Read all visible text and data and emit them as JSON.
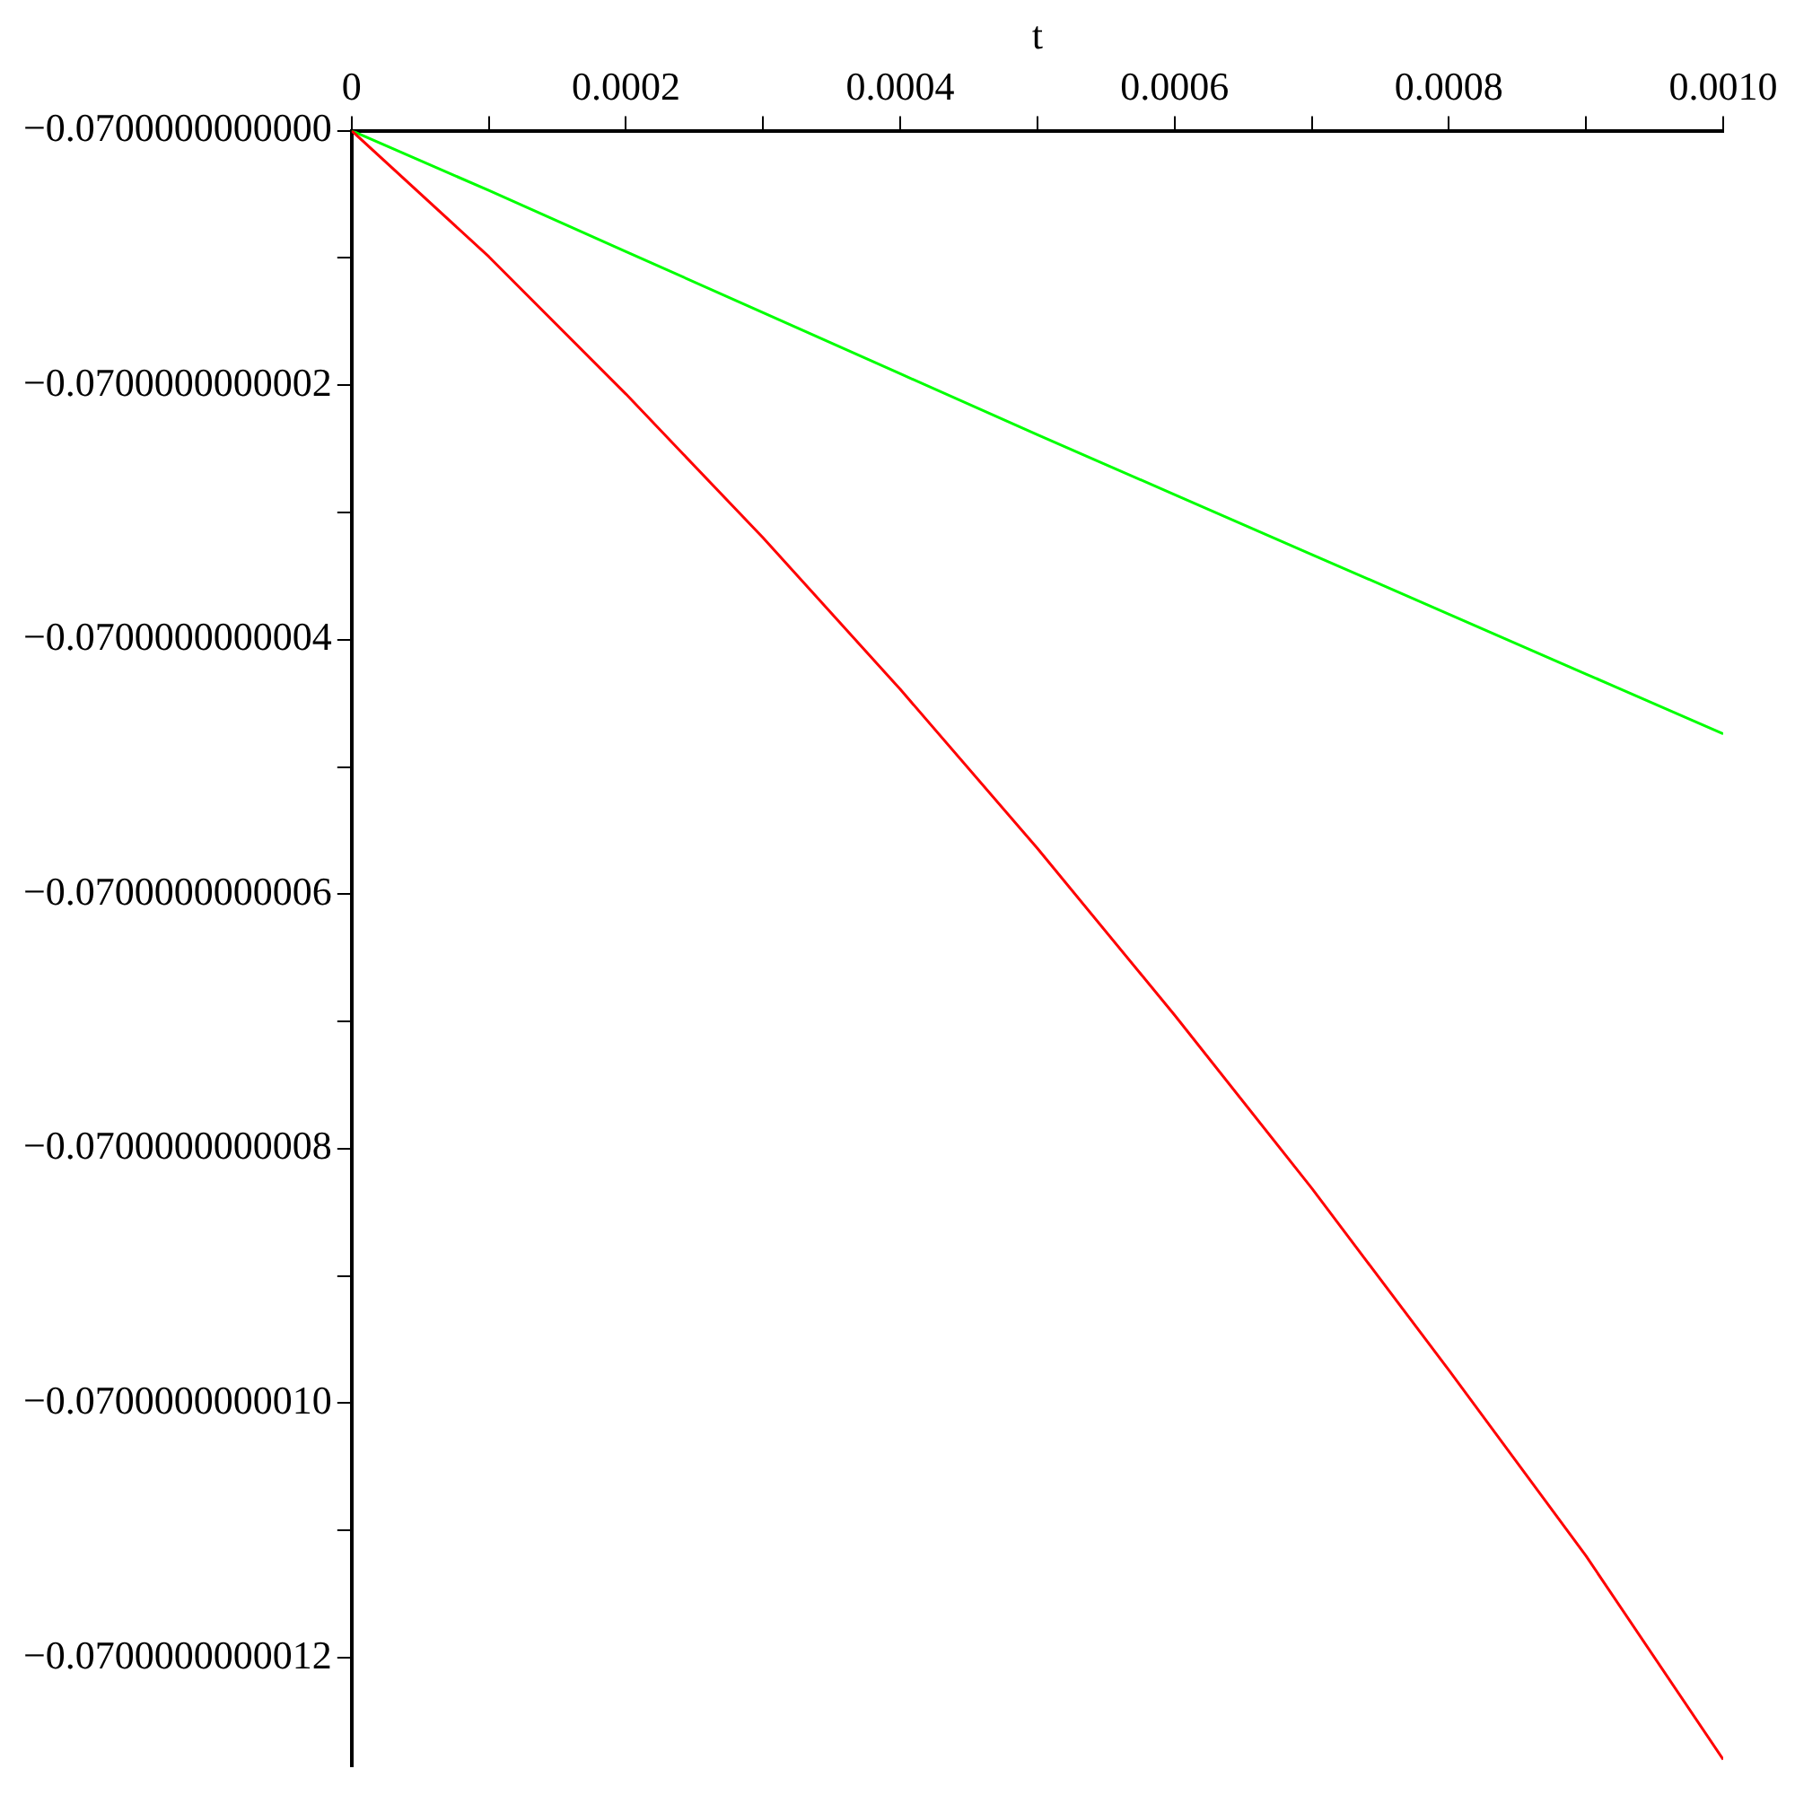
{
  "chart_data": {
    "type": "line",
    "xlabel": "t",
    "x": [
      0,
      0.0001,
      0.0002,
      0.0003,
      0.0004,
      0.0005,
      0.0006,
      0.0007,
      0.0008,
      0.0009,
      0.001
    ],
    "series": [
      {
        "color": "#ff0000",
        "values": [
          -0.07,
          -0.070000000000099,
          -0.070000000000207,
          -0.07000000000032,
          -0.070000000000439,
          -0.070000000000564,
          -0.070000000000695,
          -0.070000000000831,
          -0.070000000000974,
          -0.07000000000112,
          -0.07000000000128
        ]
      },
      {
        "color": "#00ff00",
        "values": [
          -0.07,
          -0.070000000000047,
          -0.070000000000095,
          -0.070000000000143,
          -0.070000000000191,
          -0.070000000000239,
          -0.070000000000286,
          -0.070000000000333,
          -0.07000000000038,
          -0.070000000000427,
          -0.070000000000474
        ]
      }
    ],
    "xlim": [
      0,
      0.001
    ],
    "xticks": [
      {
        "value": 0,
        "label": "0"
      },
      {
        "value": 0.0001,
        "label": null
      },
      {
        "value": 0.0002,
        "label": "0.0002"
      },
      {
        "value": 0.0003,
        "label": null
      },
      {
        "value": 0.0004,
        "label": "0.0004"
      },
      {
        "value": 0.0005,
        "label": null
      },
      {
        "value": 0.0006,
        "label": "0.0006"
      },
      {
        "value": 0.0007,
        "label": null
      },
      {
        "value": 0.0008,
        "label": "0.0008"
      },
      {
        "value": 0.0009,
        "label": null
      },
      {
        "value": 0.001,
        "label": "0.0010"
      }
    ],
    "ylim": [
      -0.070000000001285,
      -0.07
    ],
    "yticks": [
      {
        "value": -0.07,
        "label": "−0.0700000000000"
      },
      {
        "value": -0.0700000000001,
        "label": null
      },
      {
        "value": -0.0700000000002,
        "label": "−0.0700000000002"
      },
      {
        "value": -0.0700000000003,
        "label": null
      },
      {
        "value": -0.0700000000004,
        "label": "−0.0700000000004"
      },
      {
        "value": -0.0700000000005,
        "label": null
      },
      {
        "value": -0.0700000000006,
        "label": "−0.0700000000006"
      },
      {
        "value": -0.0700000000007,
        "label": null
      },
      {
        "value": -0.0700000000008,
        "label": "−0.0700000000008"
      },
      {
        "value": -0.0700000000009,
        "label": null
      },
      {
        "value": -0.070000000001,
        "label": "−0.0700000000010"
      },
      {
        "value": -0.0700000000011,
        "label": null
      },
      {
        "value": -0.0700000000012,
        "label": "−0.0700000000012"
      }
    ],
    "grid": false,
    "legend": false,
    "marker": "none",
    "line_style": "solid"
  }
}
